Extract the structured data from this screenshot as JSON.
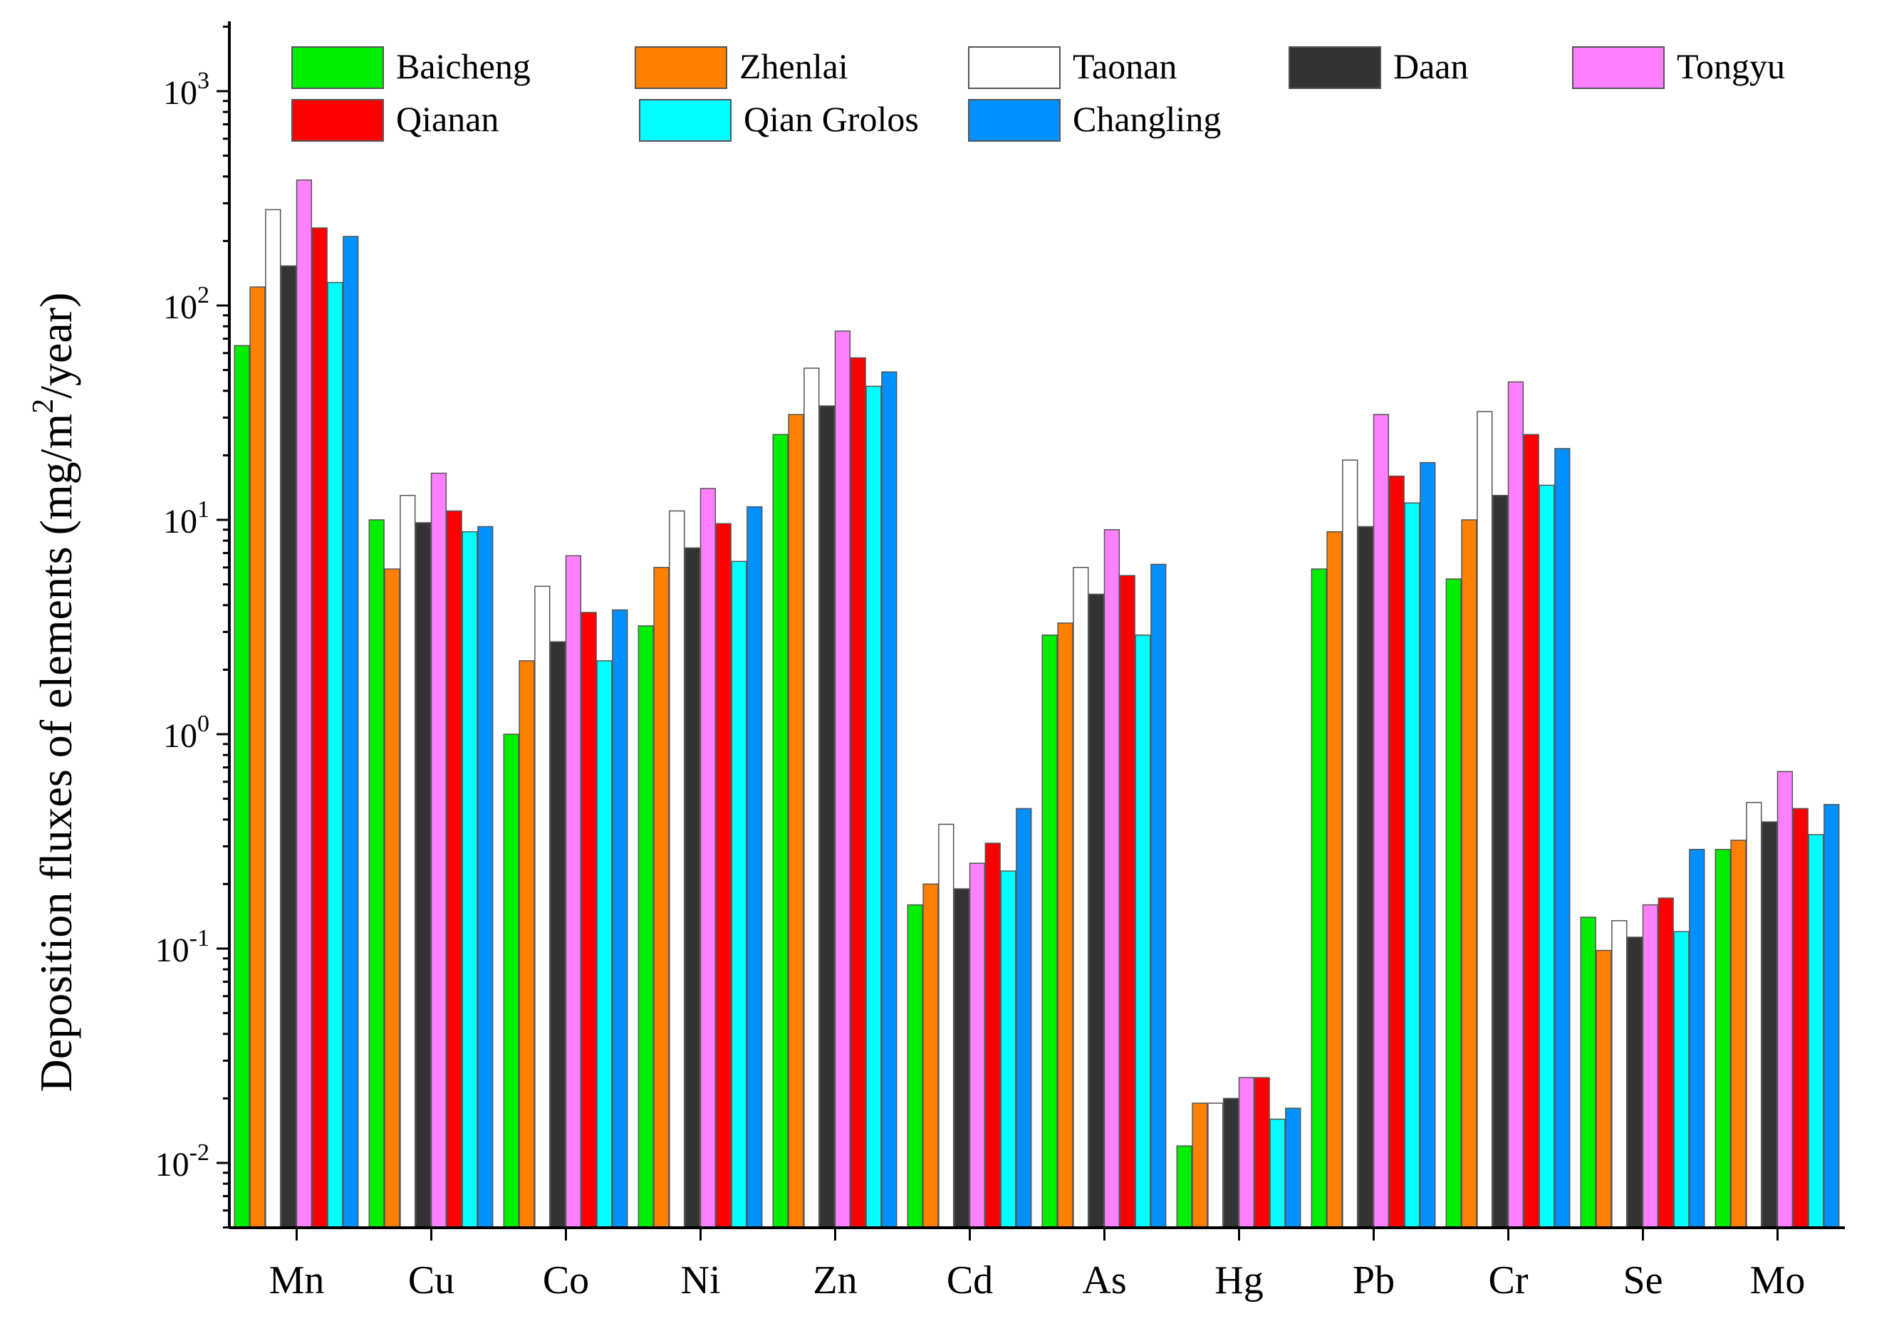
{
  "chart_data": {
    "type": "bar",
    "scale": "log",
    "title": "",
    "xlabel": "",
    "ylabel": "Deposition fluxes of elements (mg/m²/year)",
    "ylabel_parts": {
      "pre": "Deposition fluxes of elements (mg/m",
      "sup": "2",
      "post": "/year)"
    },
    "ylim": [
      0.005,
      2000
    ],
    "y_ticks": [
      {
        "value": 0.01,
        "base": "10",
        "exp": "-2"
      },
      {
        "value": 0.1,
        "base": "10",
        "exp": "-1"
      },
      {
        "value": 1,
        "base": "10",
        "exp": "0"
      },
      {
        "value": 10,
        "base": "10",
        "exp": "1"
      },
      {
        "value": 100,
        "base": "10",
        "exp": "2"
      },
      {
        "value": 1000,
        "base": "10",
        "exp": "3"
      }
    ],
    "legend_position": "top",
    "categories": [
      "Mn",
      "Cu",
      "Co",
      "Ni",
      "Zn",
      "Cd",
      "As",
      "Hg",
      "Pb",
      "Cr",
      "Se",
      "Mo"
    ],
    "series": [
      {
        "name": "Baicheng",
        "color": "#00ee00",
        "values": [
          65,
          10,
          1.0,
          3.2,
          25,
          0.16,
          2.9,
          0.012,
          5.9,
          5.3,
          0.14,
          0.29
        ]
      },
      {
        "name": "Zhenlai",
        "color": "#ff8000",
        "values": [
          122,
          5.9,
          2.2,
          6.0,
          31,
          0.2,
          3.3,
          0.019,
          8.8,
          10,
          0.098,
          0.32
        ]
      },
      {
        "name": "Taonan",
        "color": "#ffffff",
        "values": [
          280,
          13,
          4.9,
          11,
          51,
          0.38,
          6.0,
          0.019,
          19,
          32,
          0.135,
          0.48
        ]
      },
      {
        "name": "Daan",
        "color": "#333333",
        "values": [
          153,
          9.7,
          2.7,
          7.4,
          34,
          0.19,
          4.5,
          0.02,
          9.3,
          13,
          0.113,
          0.39
        ]
      },
      {
        "name": "Tongyu",
        "color": "#ff80ff",
        "values": [
          385,
          16.5,
          6.8,
          14,
          76,
          0.25,
          9.0,
          0.025,
          31,
          44,
          0.16,
          0.67
        ]
      },
      {
        "name": "Qianan",
        "color": "#ff0000",
        "values": [
          230,
          11,
          3.7,
          9.6,
          57,
          0.31,
          5.5,
          0.025,
          16,
          25,
          0.172,
          0.45
        ]
      },
      {
        "name": "Qian Grolos",
        "color": "#00ffff",
        "values": [
          128,
          8.8,
          2.2,
          6.4,
          42,
          0.23,
          2.9,
          0.016,
          12,
          14.5,
          0.12,
          0.34
        ]
      },
      {
        "name": "Changling",
        "color": "#0090ff",
        "values": [
          210,
          9.3,
          3.8,
          11.5,
          49,
          0.45,
          6.2,
          0.018,
          18.5,
          21.5,
          0.29,
          0.47
        ]
      }
    ]
  }
}
